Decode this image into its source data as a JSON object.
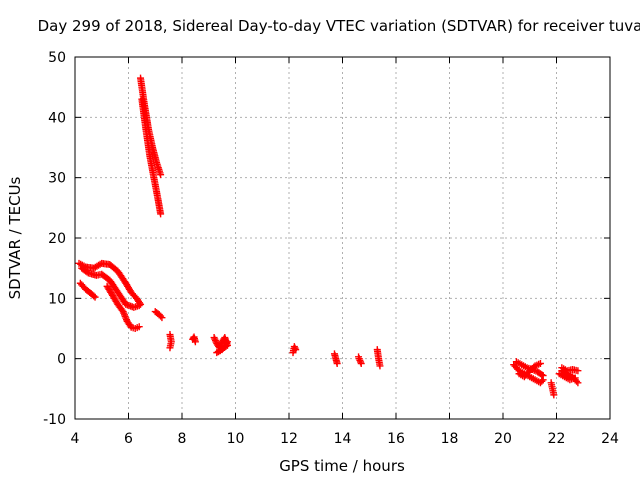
{
  "chart_data": {
    "type": "scatter",
    "title": "Day 299 of 2018, Sidereal Day-to-day VTEC variation (SDTVAR) for receiver tuva",
    "xlabel": "GPS time / hours",
    "ylabel": "SDTVAR / TECUs",
    "xlim": [
      4,
      24
    ],
    "ylim": [
      -10,
      50
    ],
    "xticks": [
      "4",
      "6",
      "8",
      "10",
      "12",
      "14",
      "16",
      "18",
      "20",
      "22",
      "24"
    ],
    "yticks": [
      "-10",
      "0",
      "10",
      "20",
      "30",
      "40",
      "50"
    ],
    "grid": true,
    "marker": "plus",
    "color": "#ff0000",
    "segments": [
      {
        "name": "arc-a",
        "x": [
          4.15,
          4.4,
          4.7,
          5.0,
          5.3,
          5.6,
          5.9,
          6.1,
          6.3,
          6.45
        ],
        "y": [
          15.8,
          15.2,
          15.0,
          15.8,
          15.6,
          14.5,
          12.5,
          11.0,
          10.0,
          9.0
        ]
      },
      {
        "name": "arc-b",
        "x": [
          4.25,
          4.5,
          4.8,
          5.0,
          5.3,
          5.6,
          5.9,
          6.2,
          6.4
        ],
        "y": [
          15.0,
          14.2,
          13.8,
          14.0,
          13.0,
          11.0,
          9.0,
          8.5,
          8.8
        ]
      },
      {
        "name": "arc-c",
        "x": [
          4.2,
          4.4,
          4.6,
          4.75
        ],
        "y": [
          12.5,
          11.5,
          10.8,
          10.2
        ]
      },
      {
        "name": "arc-d",
        "x": [
          5.2,
          5.4,
          5.6,
          5.8,
          5.95,
          6.1,
          6.25,
          6.4
        ],
        "y": [
          12.0,
          10.5,
          9.0,
          7.8,
          6.2,
          5.2,
          5.0,
          5.3
        ]
      },
      {
        "name": "arc-e",
        "x": [
          6.45,
          6.6,
          6.75,
          6.9,
          7.05,
          7.2
        ],
        "y": [
          46.5,
          42.0,
          38.0,
          35.0,
          32.5,
          30.5
        ]
      },
      {
        "name": "arc-f",
        "x": [
          6.5,
          6.65,
          6.8,
          6.95,
          7.1,
          7.2
        ],
        "y": [
          43.0,
          38.0,
          33.5,
          30.0,
          26.5,
          24.0
        ]
      },
      {
        "name": "arc-g",
        "x": [
          7.0,
          7.15,
          7.25
        ],
        "y": [
          7.8,
          7.3,
          6.8
        ]
      },
      {
        "name": "arc-h",
        "x": [
          7.55,
          7.6,
          7.55
        ],
        "y": [
          4.0,
          2.8,
          1.8
        ]
      },
      {
        "name": "arc-i",
        "x": [
          8.4,
          8.45,
          8.5
        ],
        "y": [
          3.2,
          3.6,
          2.8
        ]
      },
      {
        "name": "arc-j",
        "x": [
          9.2,
          9.3,
          9.4,
          9.5,
          9.6,
          9.7,
          9.3,
          9.5,
          9.7
        ],
        "y": [
          3.5,
          2.5,
          1.8,
          2.8,
          3.5,
          2.2,
          1.0,
          1.5,
          2.8
        ]
      },
      {
        "name": "arc-k",
        "x": [
          12.15,
          12.2,
          12.25
        ],
        "y": [
          1.0,
          2.0,
          1.5
        ]
      },
      {
        "name": "arc-l",
        "x": [
          13.7,
          13.75,
          13.8
        ],
        "y": [
          0.8,
          0.0,
          -0.8
        ]
      },
      {
        "name": "arc-m",
        "x": [
          14.6,
          14.65,
          14.7
        ],
        "y": [
          0.3,
          -0.3,
          -0.8
        ]
      },
      {
        "name": "arc-n",
        "x": [
          15.3,
          15.35,
          15.4
        ],
        "y": [
          1.5,
          0.0,
          -1.2
        ]
      },
      {
        "name": "arc-o",
        "x": [
          20.4,
          20.6,
          20.8,
          21.0,
          21.2,
          21.4,
          21.5
        ],
        "y": [
          -1.0,
          -2.0,
          -2.5,
          -3.0,
          -3.5,
          -4.0,
          -3.5
        ]
      },
      {
        "name": "arc-p",
        "x": [
          20.5,
          20.7,
          20.9,
          21.1,
          21.3,
          21.5
        ],
        "y": [
          -0.5,
          -1.0,
          -1.5,
          -1.8,
          -2.2,
          -2.8
        ]
      },
      {
        "name": "arc-q",
        "x": [
          20.6,
          20.8,
          21.0,
          21.2,
          21.4
        ],
        "y": [
          -2.5,
          -3.0,
          -2.0,
          -1.2,
          -0.8
        ]
      },
      {
        "name": "arc-r",
        "x": [
          21.8,
          21.85,
          21.9
        ],
        "y": [
          -4.0,
          -5.0,
          -6.0
        ]
      },
      {
        "name": "arc-s",
        "x": [
          22.2,
          22.4,
          22.6,
          22.8
        ],
        "y": [
          -2.0,
          -2.5,
          -3.0,
          -4.0
        ]
      },
      {
        "name": "arc-t",
        "x": [
          22.2,
          22.4,
          22.6,
          22.8
        ],
        "y": [
          -1.5,
          -2.0,
          -1.8,
          -2.0
        ]
      },
      {
        "name": "arc-u",
        "x": [
          22.1,
          22.3,
          22.5,
          22.7
        ],
        "y": [
          -2.5,
          -3.0,
          -3.5,
          -3.2
        ]
      }
    ]
  }
}
